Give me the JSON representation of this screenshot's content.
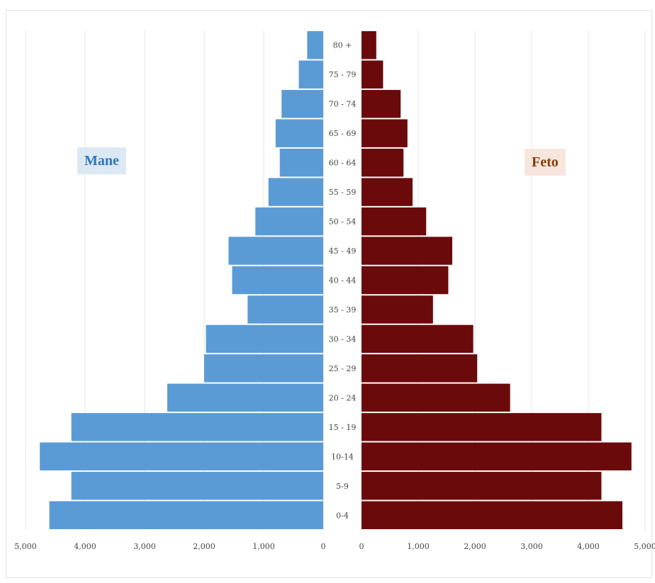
{
  "chart_data": {
    "type": "bar",
    "orientation": "horizontal",
    "subtype": "population-pyramid",
    "categories": [
      "0-4",
      "5-9",
      "10-14",
      "15 - 19",
      "20 - 24",
      "25 - 29",
      "30 - 34",
      "35 - 39",
      "40 - 44",
      "45 - 49",
      "50 - 54",
      "55 - 59",
      "60 - 64",
      "65 - 69",
      "70 - 74",
      "75 - 79",
      "80 +"
    ],
    "series": [
      {
        "name": "Mane",
        "side": "left",
        "color": "#5B9BD5",
        "label_bg": "#DDE8F5",
        "label_color": "#2E75B6",
        "values": [
          4600,
          4230,
          4760,
          4230,
          2620,
          2000,
          1970,
          1270,
          1530,
          1590,
          1140,
          920,
          730,
          800,
          700,
          410,
          270
        ]
      },
      {
        "name": "Feto",
        "side": "right",
        "color": "#6B0A0A",
        "label_bg": "#F6E6DD",
        "label_color": "#843C0C",
        "values": [
          4600,
          4230,
          4760,
          4230,
          2620,
          2040,
          1970,
          1260,
          1530,
          1600,
          1140,
          900,
          740,
          810,
          690,
          380,
          260
        ]
      }
    ],
    "xlim": [
      0,
      5000
    ],
    "xticks": [
      5000,
      4000,
      3000,
      2000,
      1000,
      0
    ],
    "tick_labels_left": [
      "5,000",
      "4,000",
      "3,000",
      "2,000",
      "1,000",
      "0"
    ],
    "tick_labels_right": [
      "0",
      "1,000",
      "2,000",
      "3,000",
      "4,000",
      "5,000"
    ],
    "grid": "vertical",
    "gridline_color": "#e6e6e6",
    "title": "",
    "xlabel": "",
    "ylabel": ""
  }
}
